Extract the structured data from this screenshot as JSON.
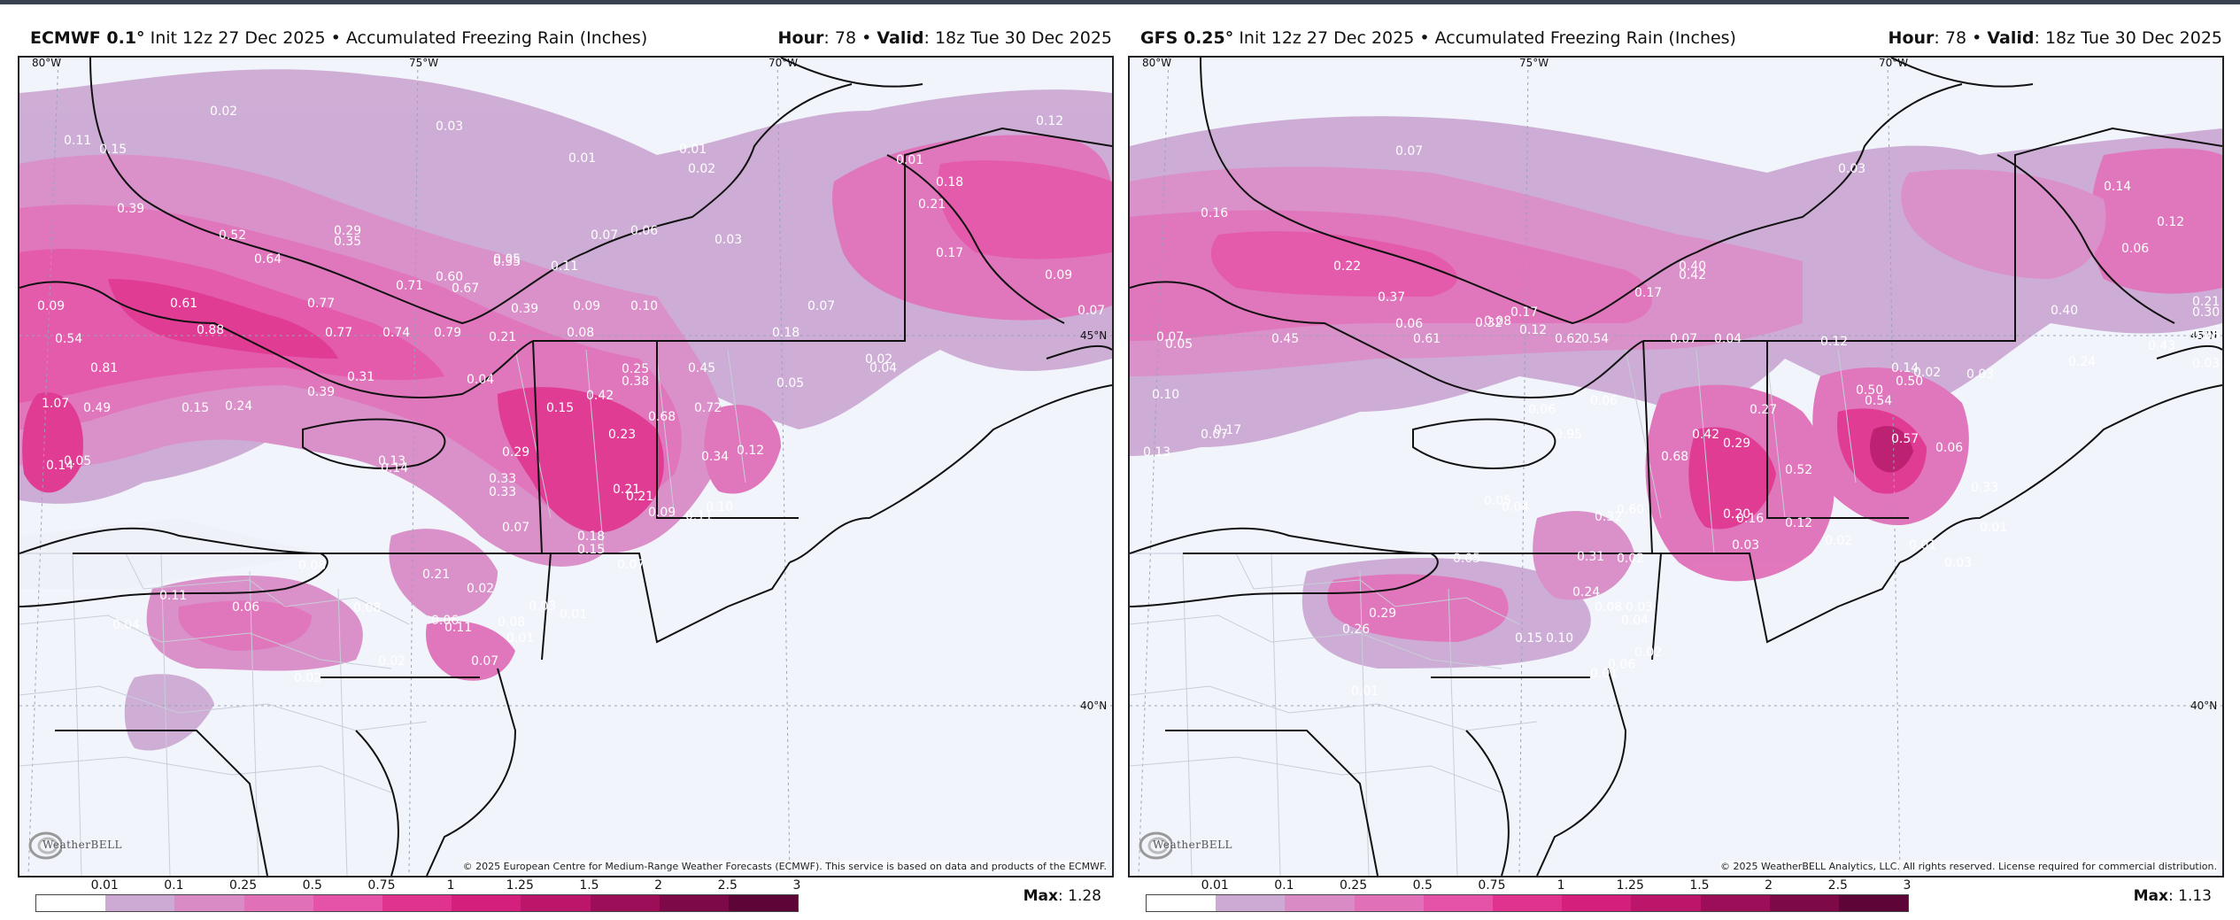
{
  "panels": [
    {
      "id": "left",
      "model": "ECMWF 0.1°",
      "init": "Init 12z 27 Dec 2025",
      "product": "Accumulated Freezing Rain (Inches)",
      "hour_label": "Hour",
      "hour": "78",
      "valid_label": "Valid",
      "valid": "18z Tue 30 Dec 2025",
      "credit": "© 2025 European Centre for Medium-Range Weather Forecasts (ECMWF). This service is based on data and products of the ECMWF.",
      "max_label": "Max",
      "max": "1.28",
      "lon_labels": [
        "80°W",
        "75°W",
        "70°W"
      ],
      "lat_labels": [
        "45°N",
        "40°N"
      ],
      "values": [
        "0.02",
        "0.03",
        "0.11",
        "0.15",
        "0.01",
        "0.01",
        "0.02",
        "0.12",
        "0.01",
        "0.18",
        "0.21",
        "0.39",
        "0.52",
        "0.29",
        "0.35",
        "0.05",
        "0.64",
        "0.35",
        "0.11",
        "0.07",
        "0.06",
        "0.03",
        "0.17",
        "0.09",
        "0.61",
        "0.77",
        "0.71",
        "0.67",
        "0.60",
        "0.39",
        "0.09",
        "0.10",
        "0.07",
        "0.07",
        "0.09",
        "0.54",
        "0.88",
        "0.77",
        "0.74",
        "0.79",
        "0.21",
        "0.08",
        "0.18",
        "0.81",
        "0.31",
        "0.04",
        "0.25",
        "0.38",
        "0.45",
        "0.04",
        "0.02",
        "1.07",
        "0.49",
        "0.15",
        "0.24",
        "0.39",
        "0.42",
        "0.05",
        "0.72",
        "0.15",
        "0.68",
        "0.23",
        "0.34",
        "0.12",
        "0.14",
        "0.05",
        "0.13",
        "0.14",
        "0.29",
        "0.33",
        "0.33",
        "0.21",
        "0.21",
        "0.09",
        "0.11",
        "0.10",
        "0.07",
        "0.18",
        "0.15",
        "0.07",
        "0.08",
        "0.21",
        "0.02",
        "0.11",
        "0.08",
        "0.06",
        "0.04",
        "0.06",
        "0.11",
        "0.08",
        "0.03",
        "0.01",
        "0.01",
        "0.02",
        "0.07",
        "0.02"
      ]
    },
    {
      "id": "right",
      "model": "GFS 0.25°",
      "init": "Init 12z 27 Dec 2025",
      "product": "Accumulated Freezing Rain (Inches)",
      "hour_label": "Hour",
      "hour": "78",
      "valid_label": "Valid",
      "valid": "18z Tue 30 Dec 2025",
      "credit": "© 2025 WeatherBELL Analytics, LLC. All rights reserved. License required for commercial distribution.",
      "max_label": "Max",
      "max": "1.13",
      "lon_labels": [
        "80°W",
        "75°W",
        "70°W"
      ],
      "lat_labels": [
        "45°N",
        "40°N"
      ],
      "values": [
        "0.03",
        "0.07",
        "0.14",
        "0.16",
        "0.12",
        "0.22",
        "0.40",
        "0.42",
        "0.37",
        "0.21",
        "0.17",
        "0.06",
        "0.06",
        "0.08",
        "0.17",
        "0.30",
        "0.12",
        "0.32",
        "0.36",
        "0.40",
        "0.43",
        "0.24",
        "0.03",
        "0.12",
        "0.05",
        "0.07",
        "0.05",
        "0.45",
        "0.61",
        "0.62",
        "0.54",
        "0.07",
        "0.04",
        "0.14",
        "0.02",
        "0.03",
        "0.10",
        "0.17",
        "0.06",
        "0.27",
        "0.50",
        "0.54",
        "0.50",
        "0.06",
        "0.13",
        "0.07",
        "0.06",
        "0.29",
        "0.42",
        "0.57",
        "0.95",
        "0.68",
        "0.52",
        "0.33",
        "0.05",
        "0.04",
        "0.60",
        "0.32",
        "0.20",
        "0.16",
        "0.12",
        "0.01",
        "0.03",
        "0.01",
        "0.02",
        "0.05",
        "0.02",
        "0.31",
        "0.03",
        "0.24",
        "0.08",
        "0.04",
        "0.03",
        "0.26",
        "0.29",
        "0.15",
        "0.10",
        "0.01",
        "0.06",
        "0.02",
        "0.01"
      ]
    }
  ],
  "legend": {
    "ticks": [
      "0.01",
      "0.1",
      "0.25",
      "0.5",
      "0.75",
      "1",
      "1.25",
      "1.5",
      "2",
      "2.5",
      "3"
    ],
    "colors": [
      "#ffffff",
      "#ccaad4",
      "#d98bc6",
      "#e070b8",
      "#e453a7",
      "#e0338f",
      "#d41f7c",
      "#bb166a",
      "#9c0f58",
      "#7d0948",
      "#5d0536"
    ]
  },
  "logo_text": "WeatherBELL"
}
